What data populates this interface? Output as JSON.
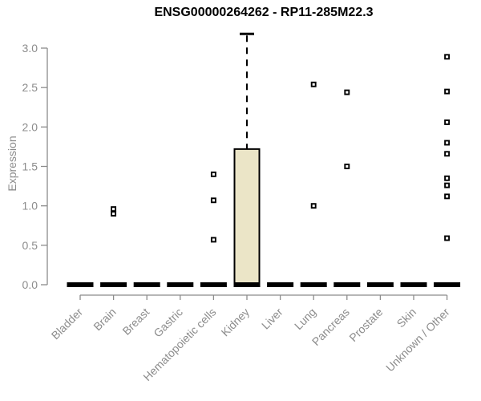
{
  "colors": {
    "background": "#ffffff",
    "title_text": "#000000",
    "axis": "#8c8c8c",
    "tick_text": "#8c8c8c",
    "box_fill": "#ebe5c7",
    "box_border": "#000000",
    "flat_bar": "#000000",
    "whisker": "#000000",
    "marker_border": "#000000",
    "marker_fill": "#ffffff"
  },
  "chart_data": {
    "type": "boxplot",
    "title": "ENSG00000264262 - RP11-285M22.3",
    "xlabel": "",
    "ylabel": "Expression",
    "ylim": [
      0.0,
      3.2
    ],
    "yticks": [
      0.0,
      0.5,
      1.0,
      1.5,
      2.0,
      2.5,
      3.0
    ],
    "ytick_labels": [
      "0.0",
      "0.5",
      "1.0",
      "1.5",
      "2.0",
      "2.5",
      "3.0"
    ],
    "grid": false,
    "legend": null,
    "categories": [
      "Bladder",
      "Brain",
      "Breast",
      "Gastric",
      "Hematopoietic cells",
      "Kidney",
      "Liver",
      "Lung",
      "Pancreas",
      "Prostate",
      "Skin",
      "Unknown / Other"
    ],
    "boxes": [
      {
        "category": "Bladder",
        "q1": 0,
        "median": 0,
        "q3": 0,
        "whisker_low": 0,
        "whisker_high": 0,
        "outliers": []
      },
      {
        "category": "Brain",
        "q1": 0,
        "median": 0,
        "q3": 0,
        "whisker_low": 0,
        "whisker_high": 0,
        "outliers": [
          0.96,
          0.9
        ]
      },
      {
        "category": "Breast",
        "q1": 0,
        "median": 0,
        "q3": 0,
        "whisker_low": 0,
        "whisker_high": 0,
        "outliers": []
      },
      {
        "category": "Gastric",
        "q1": 0,
        "median": 0,
        "q3": 0,
        "whisker_low": 0,
        "whisker_high": 0,
        "outliers": []
      },
      {
        "category": "Hematopoietic cells",
        "q1": 0,
        "median": 0,
        "q3": 0,
        "whisker_low": 0,
        "whisker_high": 0,
        "outliers": [
          1.4,
          1.07,
          0.57
        ]
      },
      {
        "category": "Kidney",
        "q1": 0,
        "median": 0,
        "q3": 1.72,
        "whisker_low": 0,
        "whisker_high": 3.18,
        "outliers": []
      },
      {
        "category": "Liver",
        "q1": 0,
        "median": 0,
        "q3": 0,
        "whisker_low": 0,
        "whisker_high": 0,
        "outliers": []
      },
      {
        "category": "Lung",
        "q1": 0,
        "median": 0,
        "q3": 0,
        "whisker_low": 0,
        "whisker_high": 0,
        "outliers": [
          2.54,
          1.0
        ]
      },
      {
        "category": "Pancreas",
        "q1": 0,
        "median": 0,
        "q3": 0,
        "whisker_low": 0,
        "whisker_high": 0,
        "outliers": [
          2.44,
          1.5
        ]
      },
      {
        "category": "Prostate",
        "q1": 0,
        "median": 0,
        "q3": 0,
        "whisker_low": 0,
        "whisker_high": 0,
        "outliers": []
      },
      {
        "category": "Skin",
        "q1": 0,
        "median": 0,
        "q3": 0,
        "whisker_low": 0,
        "whisker_high": 0,
        "outliers": []
      },
      {
        "category": "Unknown / Other",
        "q1": 0,
        "median": 0,
        "q3": 0,
        "whisker_low": 0,
        "whisker_high": 0,
        "outliers": [
          2.89,
          2.45,
          2.06,
          1.8,
          1.66,
          1.35,
          1.26,
          1.12,
          0.59
        ]
      }
    ]
  }
}
